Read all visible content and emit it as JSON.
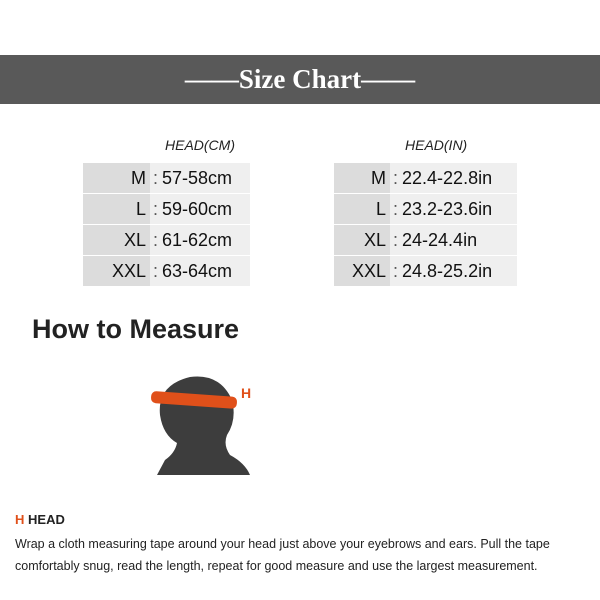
{
  "header": {
    "title": "——Size Chart——"
  },
  "cm_table": {
    "heading": "HEAD(CM)",
    "rows": [
      {
        "size": "M",
        "value": "57-58cm"
      },
      {
        "size": "L",
        "value": "59-60cm"
      },
      {
        "size": "XL",
        "value": "61-62cm"
      },
      {
        "size": "XXL",
        "value": "63-64cm"
      }
    ]
  },
  "in_table": {
    "heading": "HEAD(IN)",
    "rows": [
      {
        "size": "M",
        "value": "22.4-22.8in"
      },
      {
        "size": "L",
        "value": "23.2-23.6in"
      },
      {
        "size": "XL",
        "value": "24-24.4in"
      },
      {
        "size": "XXL",
        "value": "24.8-25.2in"
      }
    ]
  },
  "measure": {
    "title": "How to Measure",
    "marker": "H",
    "section_letter": "H",
    "section_name": "HEAD",
    "description": "Wrap a cloth measuring tape around your head just above your eyebrows and ears. Pull the tape comfortably snug, read the length, repeat for good measure and use the largest measurement."
  },
  "colors": {
    "header_bg": "#595959",
    "accent": "#e0501a"
  },
  "icons": {
    "illustration": "head-measuring-icon"
  }
}
